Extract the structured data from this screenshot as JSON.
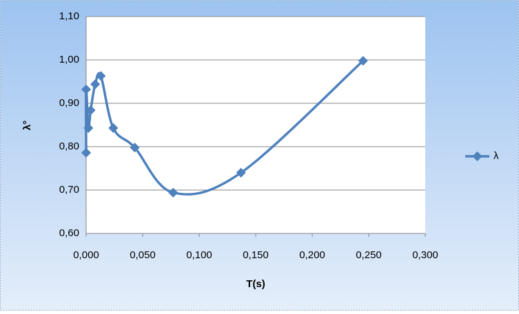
{
  "chart_data": {
    "type": "line",
    "x_label": "T(s)",
    "y_label": "λ°",
    "series": [
      {
        "name": "λ",
        "color": "#4f81bd",
        "x": [
          0.0,
          0.0,
          0.002,
          0.004,
          0.008,
          0.013,
          0.024,
          0.043,
          0.077,
          0.137,
          0.245
        ],
        "values": [
          0.786,
          0.932,
          0.843,
          0.884,
          0.944,
          0.963,
          0.843,
          0.798,
          0.694,
          0.74,
          0.998
        ]
      }
    ],
    "xlim": [
      0,
      0.3
    ],
    "xticks": [
      {
        "value": 0,
        "label": "0,000"
      },
      {
        "value": 0.05,
        "label": "0,050"
      },
      {
        "value": 0.1,
        "label": "0,100"
      },
      {
        "value": 0.15,
        "label": "0,150"
      },
      {
        "value": 0.2,
        "label": "0,200"
      },
      {
        "value": 0.25,
        "label": "0,250"
      },
      {
        "value": 0.3,
        "label": "0,300"
      }
    ],
    "ylim": [
      0.6,
      1.1
    ],
    "yticks": [
      {
        "value": 0.6,
        "label": "0,60"
      },
      {
        "value": 0.7,
        "label": "0,70"
      },
      {
        "value": 0.8,
        "label": "0,80"
      },
      {
        "value": 0.9,
        "label": "0,90"
      },
      {
        "value": 1.0,
        "label": "1,00"
      },
      {
        "value": 1.1,
        "label": "1,10"
      }
    ],
    "grid": true,
    "legend": "right",
    "smooth": true
  }
}
